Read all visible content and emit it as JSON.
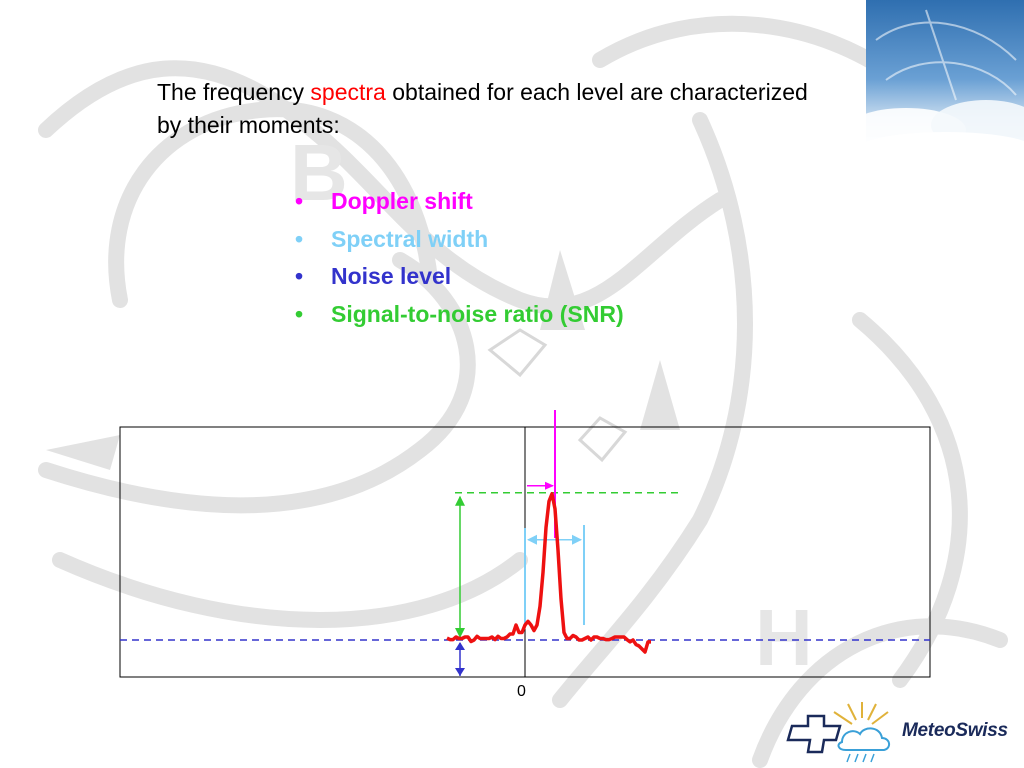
{
  "intro": {
    "before": "The frequency ",
    "highlight": "spectra",
    "after": " obtained for each level are characterized by their moments:"
  },
  "moments": [
    {
      "label": "Doppler shift",
      "color": "#ff00ff"
    },
    {
      "label": "Spectral width",
      "color": "#7fd0f7"
    },
    {
      "label": "Noise level",
      "color": "#3333cc"
    },
    {
      "label": "Signal-to-noise ratio (SNR)",
      "color": "#33cc33"
    }
  ],
  "chart_data": {
    "type": "line",
    "x_tick_labels": [
      "0"
    ],
    "series": [
      {
        "color": "#ee1111",
        "x": [
          -26,
          -25,
          -24,
          -23,
          -22,
          -21,
          -20,
          -19,
          -18,
          -17,
          -16,
          -15,
          -14,
          -13,
          -12,
          -11,
          -10,
          -9,
          -8,
          -7,
          -6,
          -5,
          -4,
          -3,
          -2,
          -1,
          0,
          1,
          2,
          3,
          4,
          5,
          6,
          7,
          8,
          9,
          10,
          11,
          12,
          13,
          14,
          15,
          16,
          17,
          18,
          19,
          20,
          21,
          22,
          23,
          24,
          25,
          26,
          27,
          28,
          29,
          30,
          31,
          32,
          33,
          34,
          35,
          36,
          37,
          38,
          39,
          40,
          41,
          42
        ],
        "values": [
          0.5,
          0.1,
          0.1,
          0.8,
          0.4,
          0.4,
          0.8,
          0.8,
          -0.4,
          0.0,
          1.0,
          0.4,
          0.4,
          0.4,
          0.4,
          0.8,
          0.1,
          1.0,
          0.4,
          0.4,
          0.8,
          1.6,
          1.6,
          4.0,
          2.0,
          2.0,
          4.0,
          5.0,
          4.0,
          2.5,
          4.0,
          9.0,
          18.0,
          30.0,
          37.0,
          39.0,
          35.0,
          24.0,
          11.0,
          2.0,
          0.4,
          0.4,
          1.2,
          0.8,
          0.0,
          0.0,
          0.4,
          0.8,
          0.0,
          0.8,
          0.8,
          0.4,
          0.4,
          0.1,
          0.1,
          0.4,
          0.8,
          0.8,
          0.8,
          0.8,
          0.1,
          -0.5,
          0.0,
          -1.2,
          -1.6,
          -2.4,
          -3.2,
          -0.5,
          -0.5
        ]
      }
    ],
    "noise_level": 0,
    "annotations": {
      "doppler_shift_x": 10,
      "peak_level": 39,
      "spectral_width_x": [
        -1,
        18
      ],
      "spectral_width_level": 23
    }
  },
  "logo": {
    "name": "MeteoSwiss"
  }
}
